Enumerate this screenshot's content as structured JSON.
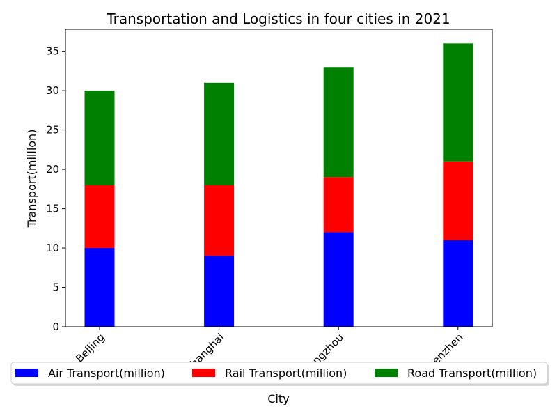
{
  "chart_data": {
    "type": "bar",
    "stacked": true,
    "title": "Transportation and Logistics in four cities in 2021",
    "xlabel": "City",
    "ylabel": "Transport(million)",
    "categories": [
      "Beijing",
      "Shanghai",
      "Guangzhou",
      "Shenzhen"
    ],
    "series": [
      {
        "name": "Air Transport(million)",
        "values": [
          10,
          9,
          12,
          11
        ],
        "color": "#0000ff"
      },
      {
        "name": "Rail Transport(million)",
        "values": [
          8,
          9,
          7,
          10
        ],
        "color": "#ff0000"
      },
      {
        "name": "Road Transport(million)",
        "values": [
          12,
          13,
          14,
          15
        ],
        "color": "#008000"
      }
    ],
    "ylim": [
      0,
      37.8
    ],
    "yticks": [
      0,
      5,
      10,
      15,
      20,
      25,
      30,
      35
    ],
    "grid": false,
    "legend_position": "bottom-center",
    "xtick_rotation": 45
  }
}
